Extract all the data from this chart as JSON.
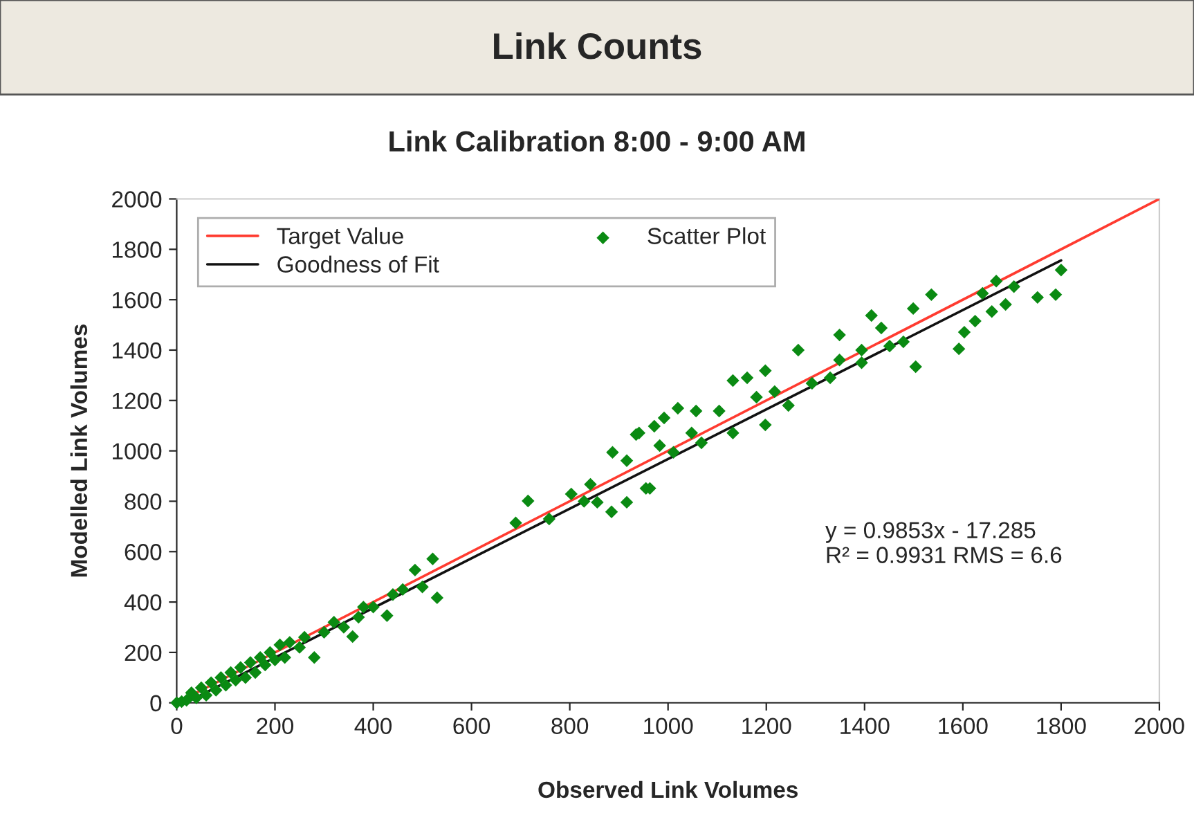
{
  "chart_data": {
    "type": "scatter",
    "title": "Link Counts",
    "subtitle": "Link Calibration 8:00 - 9:00 AM",
    "xlabel": "Observed Link Volumes",
    "ylabel": "Modelled Link Volumes",
    "xlim": [
      0,
      2000
    ],
    "ylim": [
      0,
      2000
    ],
    "xticks": [
      0,
      200,
      400,
      600,
      800,
      1000,
      1200,
      1400,
      1600,
      1800,
      2000
    ],
    "yticks": [
      0,
      200,
      400,
      600,
      800,
      1000,
      1200,
      1400,
      1600,
      1800,
      2000
    ],
    "legend": "top left",
    "annotations": [
      "y = 0.9853x - 17.285",
      "R² = 0.9931 RMS = 6.6"
    ],
    "series": [
      {
        "name": "Target Value",
        "type": "line",
        "color": "#ff3b30",
        "line_style": "solid",
        "x": [
          0,
          2000
        ],
        "values": [
          0,
          2000
        ]
      },
      {
        "name": "Scatter Plot",
        "marker": "diamond",
        "color": "#0a8a12",
        "x": [
          0,
          10,
          20,
          30,
          40,
          50,
          60,
          70,
          80,
          90,
          100,
          110,
          120,
          130,
          140,
          150,
          160,
          170,
          180,
          190,
          200,
          210,
          220,
          230,
          250,
          260,
          280,
          300,
          320,
          340,
          358,
          370,
          380,
          400,
          428,
          440,
          460,
          485,
          500,
          521,
          530,
          690,
          715,
          758,
          803,
          829,
          842,
          856,
          885,
          887,
          916,
          916,
          935,
          941,
          955,
          963,
          972,
          983,
          992,
          1011,
          1020,
          1048,
          1057,
          1068,
          1104,
          1132,
          1132,
          1161,
          1180,
          1198,
          1198,
          1217,
          1245,
          1265,
          1293,
          1330,
          1349,
          1349,
          1394,
          1394,
          1414,
          1434,
          1451,
          1479,
          1499,
          1504,
          1536,
          1592,
          1603,
          1625,
          1640,
          1659,
          1668,
          1687,
          1704,
          1752,
          1789,
          1800
        ],
        "values": [
          0,
          5,
          10,
          40,
          20,
          60,
          30,
          80,
          50,
          100,
          70,
          120,
          90,
          140,
          100,
          160,
          120,
          180,
          150,
          200,
          170,
          230,
          180,
          240,
          220,
          260,
          180,
          280,
          320,
          300,
          263,
          340,
          380,
          380,
          346,
          430,
          450,
          527,
          460,
          571,
          417,
          714,
          801,
          730,
          829,
          800,
          867,
          796,
          758,
          994,
          796,
          961,
          1065,
          1071,
          851,
          851,
          1098,
          1021,
          1131,
          994,
          1169,
          1071,
          1158,
          1032,
          1158,
          1279,
          1071,
          1290,
          1213,
          1318,
          1103,
          1235,
          1180,
          1400,
          1268,
          1290,
          1460,
          1361,
          1400,
          1350,
          1537,
          1488,
          1416,
          1433,
          1565,
          1334,
          1620,
          1405,
          1471,
          1515,
          1625,
          1553,
          1674,
          1581,
          1652,
          1609,
          1620,
          1718
        ]
      },
      {
        "name": "Goodness of Fit",
        "type": "line",
        "color": "#111111",
        "line_style": "solid",
        "x": [
          20,
          1800
        ],
        "values": [
          2,
          1756
        ]
      }
    ]
  }
}
